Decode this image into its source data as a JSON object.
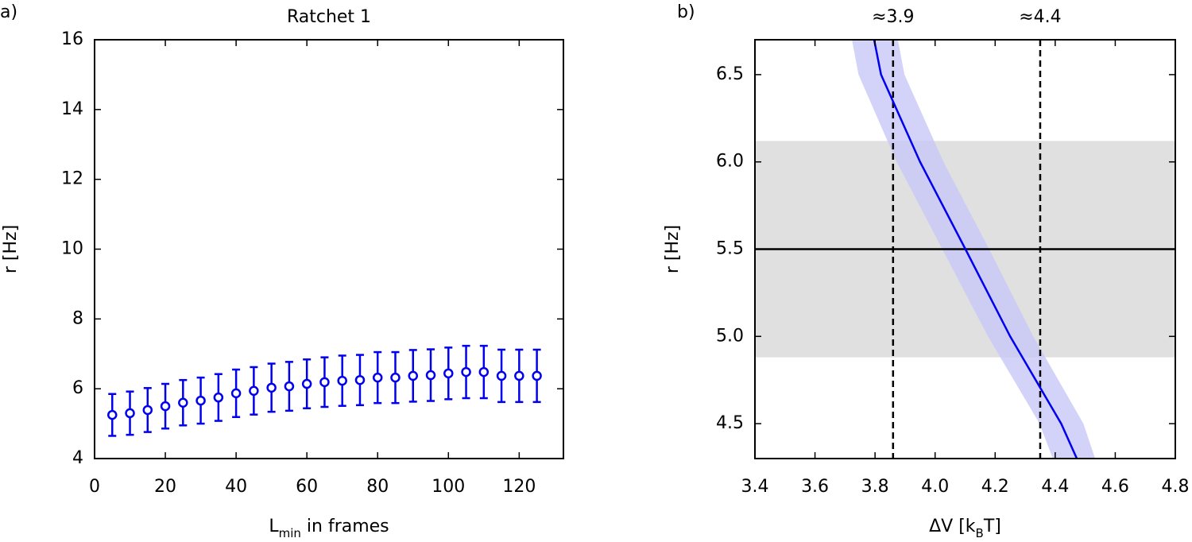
{
  "chart_data": [
    {
      "type": "scatter",
      "panel_label": "a)",
      "title": "Ratchet 1",
      "ylabel": "r [Hz]",
      "xlabel": {
        "main": "L",
        "sub": "min",
        "rest": " in frames"
      },
      "color": "#0000ee",
      "x": [
        5,
        10,
        15,
        20,
        25,
        30,
        35,
        40,
        45,
        50,
        55,
        60,
        65,
        70,
        75,
        80,
        85,
        90,
        95,
        100,
        105,
        110,
        115,
        120,
        125
      ],
      "values": [
        5.25,
        5.3,
        5.39,
        5.5,
        5.6,
        5.66,
        5.75,
        5.87,
        5.94,
        6.03,
        6.07,
        6.14,
        6.19,
        6.23,
        6.25,
        6.32,
        6.32,
        6.37,
        6.39,
        6.44,
        6.48,
        6.48,
        6.37,
        6.37,
        6.37
      ],
      "errors": [
        0.6,
        0.62,
        0.63,
        0.64,
        0.65,
        0.66,
        0.67,
        0.68,
        0.68,
        0.69,
        0.7,
        0.7,
        0.71,
        0.72,
        0.72,
        0.73,
        0.73,
        0.74,
        0.74,
        0.74,
        0.75,
        0.75,
        0.75,
        0.75,
        0.75
      ],
      "xlim": [
        0,
        132.5
      ],
      "ylim": [
        4,
        16
      ],
      "xticks": [
        0,
        20,
        40,
        60,
        80,
        100,
        120
      ],
      "yticks": [
        4,
        6,
        8,
        10,
        12,
        14,
        16
      ]
    },
    {
      "type": "line",
      "panel_label": "b)",
      "ylabel": "r [Hz]",
      "xlabel": {
        "main": "ΔV [k",
        "sub": "B",
        "rest": "T]"
      },
      "xlim": [
        3.4,
        4.8
      ],
      "ylim": [
        4.3,
        6.7
      ],
      "xticks": [
        3.4,
        3.6,
        3.8,
        {
          "value": 4,
          "label": "4.0"
        },
        4.2,
        4.4,
        4.6,
        4.8
      ],
      "yticks": [
        4.5,
        {
          "value": 5,
          "label": "5.0"
        },
        5.5,
        {
          "value": 6,
          "label": "6.0"
        },
        6.5
      ],
      "hline": 5.5,
      "hband": [
        4.88,
        6.12
      ],
      "vlines": [
        {
          "value": 3.86,
          "label": "≈3.9"
        },
        {
          "value": 4.35,
          "label": "≈4.4"
        }
      ],
      "curve": {
        "color": "#0000ee",
        "y": [
          6.7,
          6.5,
          6.0,
          5.5,
          5.0,
          4.5,
          4.3
        ],
        "x": [
          3.797,
          3.82,
          3.95,
          4.101,
          4.25,
          4.42,
          4.472
        ]
      },
      "band": {
        "color": "#c8c8f8",
        "x_low": [
          3.723,
          3.745,
          3.872,
          4.024,
          4.176,
          4.348,
          4.392
        ],
        "x_high": [
          3.876,
          3.898,
          4.028,
          4.18,
          4.327,
          4.494,
          4.533
        ]
      }
    }
  ]
}
